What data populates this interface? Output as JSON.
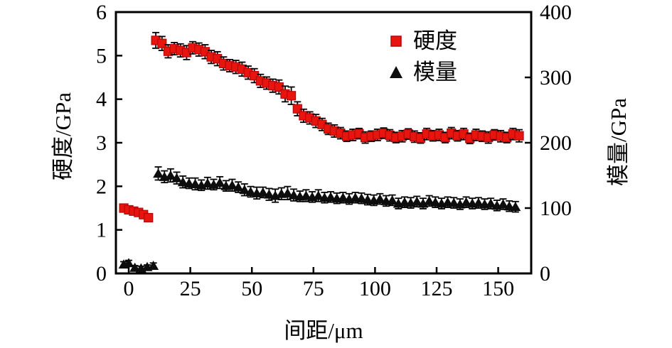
{
  "chart_data": {
    "type": "scatter",
    "title": "",
    "grid": false,
    "legend_position": "upper-right-inside",
    "x_axis": {
      "label": "间距/μm",
      "ticks": [
        0,
        25,
        50,
        75,
        100,
        125,
        150
      ],
      "range": [
        -5.2,
        163.4
      ]
    },
    "y_left": {
      "label": "硬度/GPa",
      "ticks": [
        0,
        1,
        2,
        3,
        4,
        5,
        6
      ],
      "range": [
        0,
        6
      ]
    },
    "y_right": {
      "label": "模量/GPa",
      "ticks": [
        0,
        100,
        200,
        300,
        400
      ],
      "range": [
        0,
        400
      ]
    },
    "colors": {
      "hardness": "#e8150f",
      "hardness_edge": "#b40808",
      "modulus": "#0d0d0d",
      "error_bar": "#000000",
      "frame": "#000000"
    },
    "legend": [
      {
        "label": "硬度",
        "marker": "square",
        "color": "#e8150f"
      },
      {
        "label": "模量",
        "marker": "triangle",
        "color": "#0d0d0d"
      }
    ],
    "series": [
      {
        "name": "硬度",
        "axis": "left",
        "marker": "square",
        "color": "#e8150f",
        "edge": "#b40808",
        "points": [
          [
            -2,
            1.5,
            0.06
          ],
          [
            0,
            1.46,
            0.06
          ],
          [
            2,
            1.43,
            0.05
          ],
          [
            4,
            1.4,
            0.06
          ],
          [
            6,
            1.35,
            0.06
          ],
          [
            8,
            1.28,
            0.07
          ],
          [
            11,
            5.35,
            0.18
          ],
          [
            13.5,
            5.28,
            0.16
          ],
          [
            16,
            5.1,
            0.15
          ],
          [
            18.5,
            5.16,
            0.14
          ],
          [
            21,
            5.12,
            0.15
          ],
          [
            23.5,
            5.07,
            0.16
          ],
          [
            26,
            5.18,
            0.14
          ],
          [
            28.5,
            5.14,
            0.15
          ],
          [
            31,
            5.09,
            0.16
          ],
          [
            33.5,
            4.97,
            0.15
          ],
          [
            36,
            4.93,
            0.16
          ],
          [
            38.5,
            4.82,
            0.15
          ],
          [
            41,
            4.77,
            0.14
          ],
          [
            43.5,
            4.74,
            0.15
          ],
          [
            46,
            4.69,
            0.16
          ],
          [
            48.5,
            4.61,
            0.15
          ],
          [
            51,
            4.54,
            0.16
          ],
          [
            53.5,
            4.42,
            0.15
          ],
          [
            56,
            4.37,
            0.14
          ],
          [
            58.5,
            4.31,
            0.15
          ],
          [
            61,
            4.28,
            0.16
          ],
          [
            63.5,
            4.12,
            0.18
          ],
          [
            66,
            4.08,
            0.2
          ],
          [
            68.5,
            3.78,
            0.16
          ],
          [
            71,
            3.62,
            0.15
          ],
          [
            73.5,
            3.57,
            0.14
          ],
          [
            76,
            3.5,
            0.15
          ],
          [
            78.5,
            3.42,
            0.14
          ],
          [
            81,
            3.32,
            0.13
          ],
          [
            83.5,
            3.27,
            0.14
          ],
          [
            86,
            3.22,
            0.13
          ],
          [
            88.5,
            3.15,
            0.12
          ],
          [
            91,
            3.18,
            0.13
          ],
          [
            93.5,
            3.21,
            0.12
          ],
          [
            96,
            3.12,
            0.13
          ],
          [
            98.5,
            3.15,
            0.12
          ],
          [
            101,
            3.18,
            0.13
          ],
          [
            103.5,
            3.22,
            0.12
          ],
          [
            106,
            3.17,
            0.13
          ],
          [
            108.5,
            3.12,
            0.12
          ],
          [
            111,
            3.15,
            0.13
          ],
          [
            113.5,
            3.2,
            0.12
          ],
          [
            116,
            3.14,
            0.13
          ],
          [
            118.5,
            3.11,
            0.12
          ],
          [
            121,
            3.2,
            0.13
          ],
          [
            123.5,
            3.16,
            0.12
          ],
          [
            126,
            3.18,
            0.13
          ],
          [
            128.5,
            3.12,
            0.12
          ],
          [
            131,
            3.22,
            0.13
          ],
          [
            133.5,
            3.16,
            0.12
          ],
          [
            136,
            3.2,
            0.13
          ],
          [
            138.5,
            3.1,
            0.12
          ],
          [
            141,
            3.18,
            0.13
          ],
          [
            143.5,
            3.15,
            0.12
          ],
          [
            146,
            3.12,
            0.13
          ],
          [
            148.5,
            3.18,
            0.12
          ],
          [
            151,
            3.15,
            0.13
          ],
          [
            153.5,
            3.12,
            0.12
          ],
          [
            156,
            3.2,
            0.13
          ],
          [
            158.5,
            3.16,
            0.14
          ]
        ]
      },
      {
        "name": "模量",
        "axis": "right",
        "marker": "triangle",
        "color": "#0d0d0d",
        "edge": "#0d0d0d",
        "points": [
          [
            -2,
            14,
            4
          ],
          [
            0,
            16,
            4
          ],
          [
            2.5,
            9,
            3
          ],
          [
            5,
            8,
            3
          ],
          [
            7.5,
            10,
            3
          ],
          [
            10,
            12,
            4
          ],
          [
            12,
            153,
            10
          ],
          [
            14.5,
            148,
            9
          ],
          [
            17,
            150,
            10
          ],
          [
            19.5,
            146,
            9
          ],
          [
            22,
            140,
            9
          ],
          [
            24.5,
            138,
            8
          ],
          [
            27,
            137,
            9
          ],
          [
            29.5,
            135,
            8
          ],
          [
            32,
            138,
            9
          ],
          [
            34.5,
            136,
            8
          ],
          [
            37,
            139,
            9
          ],
          [
            39.5,
            134,
            8
          ],
          [
            42,
            135,
            9
          ],
          [
            44.5,
            132,
            8
          ],
          [
            47,
            128,
            9
          ],
          [
            49.5,
            125,
            8
          ],
          [
            52,
            123,
            9
          ],
          [
            54.5,
            124,
            8
          ],
          [
            57,
            121,
            9
          ],
          [
            59.5,
            119,
            10
          ],
          [
            62,
            122,
            9
          ],
          [
            64.5,
            123,
            10
          ],
          [
            67,
            120,
            9
          ],
          [
            69.5,
            118,
            8
          ],
          [
            72,
            119,
            9
          ],
          [
            74.5,
            117,
            8
          ],
          [
            77,
            119,
            9
          ],
          [
            79.5,
            116,
            8
          ],
          [
            82,
            117,
            8
          ],
          [
            84.5,
            115,
            8
          ],
          [
            87,
            116,
            8
          ],
          [
            89.5,
            114,
            8
          ],
          [
            92,
            116,
            8
          ],
          [
            94.5,
            115,
            8
          ],
          [
            97,
            113,
            8
          ],
          [
            99.5,
            112,
            8
          ],
          [
            102,
            114,
            8
          ],
          [
            104.5,
            111,
            8
          ],
          [
            107,
            112,
            8
          ],
          [
            109.5,
            107,
            8
          ],
          [
            112,
            109,
            8
          ],
          [
            114.5,
            108,
            8
          ],
          [
            117,
            110,
            8
          ],
          [
            119.5,
            107,
            8
          ],
          [
            122,
            111,
            8
          ],
          [
            124.5,
            109,
            8
          ],
          [
            127,
            107,
            8
          ],
          [
            129.5,
            109,
            8
          ],
          [
            132,
            108,
            8
          ],
          [
            134.5,
            106,
            8
          ],
          [
            137,
            109,
            8
          ],
          [
            139.5,
            107,
            8
          ],
          [
            142,
            108,
            8
          ],
          [
            144.5,
            106,
            8
          ],
          [
            147,
            107,
            8
          ],
          [
            149.5,
            104,
            8
          ],
          [
            152,
            106,
            8
          ],
          [
            154.5,
            103,
            8
          ],
          [
            157,
            102,
            8
          ]
        ]
      }
    ]
  }
}
